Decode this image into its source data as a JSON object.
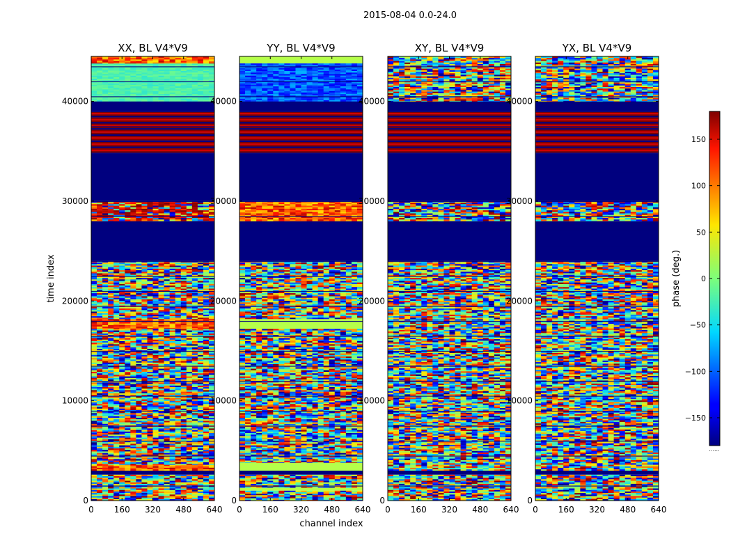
{
  "chart_data": {
    "type": "heatmap",
    "suptitle": "2015-08-04 0.0-24.0",
    "xlabel": "channel index",
    "ylabel": "time index",
    "xlim": [
      0,
      640
    ],
    "ylim": [
      0,
      44500
    ],
    "x_ticks": [
      0,
      160,
      320,
      480,
      640
    ],
    "y_ticks": [
      0,
      10000,
      20000,
      30000,
      40000
    ],
    "colorbar": {
      "label": "phase (deg.)",
      "range": [
        -180,
        180
      ],
      "ticks": [
        150,
        100,
        50,
        0,
        -50,
        -100,
        -150
      ],
      "tick_labels": [
        "150",
        "100",
        "50",
        "0",
        "−50",
        "−100",
        "−150"
      ],
      "colormap": "jet",
      "under_note": "......"
    },
    "panels": [
      {
        "title": "XX, BL V4*V9",
        "bands": [
          {
            "from": 0,
            "to": 2600,
            "kind": "noise"
          },
          {
            "from": 2600,
            "to": 3000,
            "kind": "flagged"
          },
          {
            "from": 3000,
            "to": 3600,
            "kind": "warm"
          },
          {
            "from": 3600,
            "to": 17200,
            "kind": "noise"
          },
          {
            "from": 17200,
            "to": 18200,
            "kind": "warm"
          },
          {
            "from": 18200,
            "to": 24000,
            "kind": "noise"
          },
          {
            "from": 24000,
            "to": 28000,
            "kind": "flagged"
          },
          {
            "from": 28000,
            "to": 30000,
            "kind": "red-mix"
          },
          {
            "from": 30000,
            "to": 34800,
            "kind": "flagged"
          },
          {
            "from": 34800,
            "to": 39000,
            "kind": "red-stripes"
          },
          {
            "from": 39000,
            "to": 40000,
            "kind": "flagged"
          },
          {
            "from": 40000,
            "to": 43800,
            "kind": "cyan"
          },
          {
            "from": 43800,
            "to": 44500,
            "kind": "warm"
          }
        ]
      },
      {
        "title": "YY, BL V4*V9",
        "bands": [
          {
            "from": 0,
            "to": 1000,
            "kind": "noise"
          },
          {
            "from": 1000,
            "to": 1300,
            "kind": "light-green"
          },
          {
            "from": 1300,
            "to": 2600,
            "kind": "noise"
          },
          {
            "from": 2600,
            "to": 3000,
            "kind": "flagged"
          },
          {
            "from": 3000,
            "to": 3800,
            "kind": "light-green"
          },
          {
            "from": 3800,
            "to": 17200,
            "kind": "noise"
          },
          {
            "from": 17200,
            "to": 18200,
            "kind": "light-green"
          },
          {
            "from": 18200,
            "to": 24000,
            "kind": "noise"
          },
          {
            "from": 24000,
            "to": 28000,
            "kind": "flagged"
          },
          {
            "from": 28000,
            "to": 30000,
            "kind": "warm"
          },
          {
            "from": 30000,
            "to": 34800,
            "kind": "flagged"
          },
          {
            "from": 34800,
            "to": 39000,
            "kind": "red-stripes"
          },
          {
            "from": 39000,
            "to": 40000,
            "kind": "flagged"
          },
          {
            "from": 40000,
            "to": 43800,
            "kind": "blue"
          },
          {
            "from": 43800,
            "to": 44500,
            "kind": "light-green"
          }
        ]
      },
      {
        "title": "XY, BL V4*V9",
        "bands": [
          {
            "from": 0,
            "to": 2600,
            "kind": "noise"
          },
          {
            "from": 2600,
            "to": 3000,
            "kind": "flagged"
          },
          {
            "from": 3000,
            "to": 24000,
            "kind": "noise"
          },
          {
            "from": 24000,
            "to": 28000,
            "kind": "flagged"
          },
          {
            "from": 28000,
            "to": 30000,
            "kind": "noise"
          },
          {
            "from": 30000,
            "to": 34800,
            "kind": "flagged"
          },
          {
            "from": 34800,
            "to": 39000,
            "kind": "red-stripes"
          },
          {
            "from": 39000,
            "to": 40000,
            "kind": "flagged"
          },
          {
            "from": 40000,
            "to": 44500,
            "kind": "noise"
          }
        ]
      },
      {
        "title": "YX, BL V4*V9",
        "bands": [
          {
            "from": 0,
            "to": 2600,
            "kind": "noise"
          },
          {
            "from": 2600,
            "to": 3000,
            "kind": "flagged"
          },
          {
            "from": 3000,
            "to": 24000,
            "kind": "noise"
          },
          {
            "from": 24000,
            "to": 28000,
            "kind": "flagged"
          },
          {
            "from": 28000,
            "to": 30000,
            "kind": "noise"
          },
          {
            "from": 30000,
            "to": 34800,
            "kind": "flagged"
          },
          {
            "from": 34800,
            "to": 39000,
            "kind": "red-stripes"
          },
          {
            "from": 39000,
            "to": 40000,
            "kind": "flagged"
          },
          {
            "from": 40000,
            "to": 44500,
            "kind": "noise"
          }
        ]
      }
    ],
    "horizontal_stripes_every": 500
  }
}
